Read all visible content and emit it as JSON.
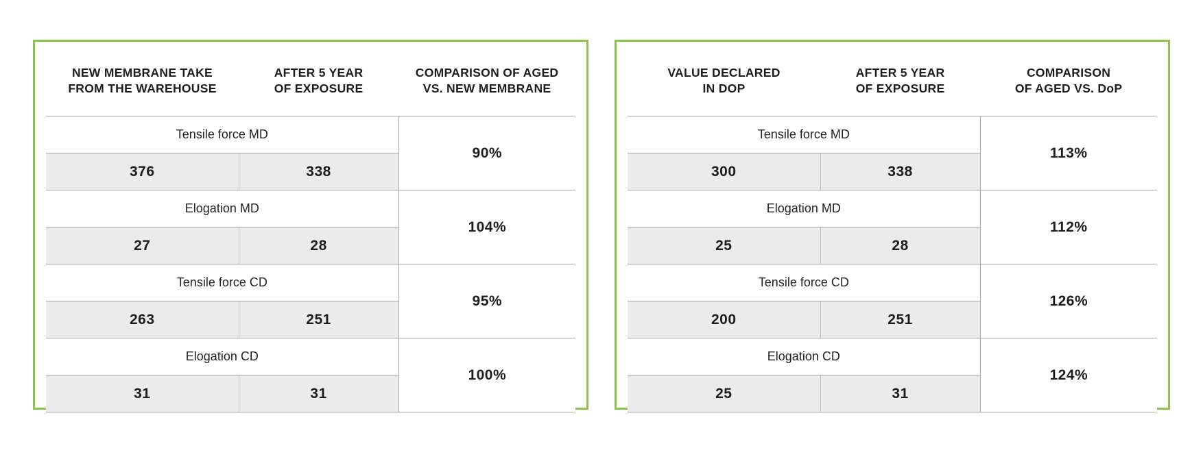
{
  "page": {
    "background": "#ffffff"
  },
  "colors": {
    "panel_border_green": "#8fc24d",
    "value_row_gray": "#ebebeb",
    "grid_line_gray": "#a6a6a6",
    "cell_divider_gray": "#bdbdbd",
    "text_black": "#1d1d1b"
  },
  "tables": [
    {
      "name": "aged-vs-new-membrane",
      "headers": [
        {
          "line1": "NEW MEMBRANE TAKE",
          "line2": "FROM THE WAREHOUSE"
        },
        {
          "line1": "AFTER 5 YEAR",
          "line2": "OF EXPOSURE"
        },
        {
          "line1": "COMPARISON OF AGED",
          "line2": "VS. NEW MEMBRANE"
        }
      ],
      "rows": [
        {
          "label": "Tensile force MD",
          "value1": "376",
          "value2": "338",
          "comparison": "90%"
        },
        {
          "label": "Elogation MD",
          "value1": "27",
          "value2": "28",
          "comparison": "104%"
        },
        {
          "label": "Tensile force CD",
          "value1": "263",
          "value2": "251",
          "comparison": "95%"
        },
        {
          "label": "Elogation CD",
          "value1": "31",
          "value2": "31",
          "comparison": "100%"
        }
      ]
    },
    {
      "name": "aged-vs-dop",
      "headers": [
        {
          "line1": "VALUE DECLARED",
          "line2": "IN DOP"
        },
        {
          "line1": "AFTER 5 YEAR",
          "line2": "OF EXPOSURE"
        },
        {
          "line1": "COMPARISON",
          "line2": "OF AGED VS. DoP"
        }
      ],
      "rows": [
        {
          "label": "Tensile force MD",
          "value1": "300",
          "value2": "338",
          "comparison": "113%"
        },
        {
          "label": "Elogation MD",
          "value1": "25",
          "value2": "28",
          "comparison": "112%"
        },
        {
          "label": "Tensile force CD",
          "value1": "200",
          "value2": "251",
          "comparison": "126%"
        },
        {
          "label": "Elogation CD",
          "value1": "25",
          "value2": "31",
          "comparison": "124%"
        }
      ]
    }
  ]
}
